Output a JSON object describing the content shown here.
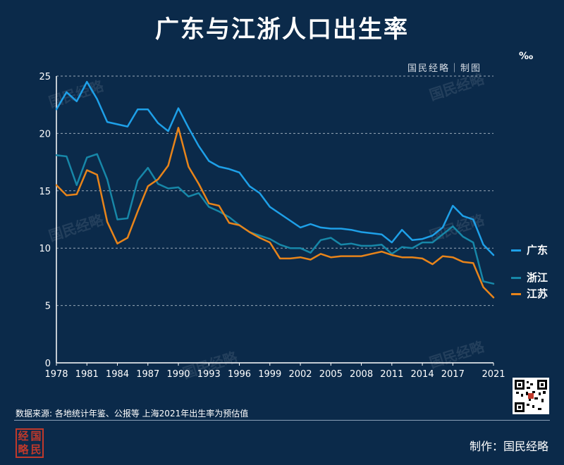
{
  "title": "广东与江浙人口出生率",
  "credit_top": "国民经略｜制图",
  "unit": "‰",
  "watermark": "国民经略",
  "source": "数据来源: 各地统计年鉴、公报等 上海2021年出生率为预估值",
  "footer_credit": "制作：国民经略",
  "logo_chars": [
    "经",
    "国",
    "略",
    "民"
  ],
  "chart_data": {
    "type": "line",
    "title": "广东与江浙人口出生率",
    "ylabel": "‰",
    "xlim": [
      1978,
      2021
    ],
    "ylim": [
      0,
      25
    ],
    "yticks": [
      0,
      5,
      10,
      15,
      20,
      25
    ],
    "xticks": [
      1978,
      1981,
      1984,
      1987,
      1990,
      1993,
      1996,
      1999,
      2002,
      2005,
      2008,
      2011,
      2014,
      2017,
      2021
    ],
    "grid": true,
    "legend_position": "right",
    "x": [
      1978,
      1979,
      1980,
      1981,
      1982,
      1983,
      1984,
      1985,
      1986,
      1987,
      1988,
      1989,
      1990,
      1991,
      1992,
      1993,
      1994,
      1995,
      1996,
      1997,
      1998,
      1999,
      2000,
      2001,
      2002,
      2003,
      2004,
      2005,
      2006,
      2007,
      2008,
      2009,
      2010,
      2011,
      2012,
      2013,
      2014,
      2015,
      2016,
      2017,
      2018,
      2019,
      2020,
      2021
    ],
    "series": [
      {
        "name": "广东",
        "color": "#1ea0e8",
        "values": [
          22.1,
          23.6,
          22.8,
          24.5,
          23.0,
          21.0,
          20.8,
          20.6,
          22.1,
          22.1,
          20.9,
          20.2,
          22.2,
          20.5,
          18.9,
          17.6,
          17.1,
          16.9,
          16.6,
          15.4,
          14.8,
          13.6,
          13.0,
          12.4,
          11.8,
          12.1,
          11.8,
          11.7,
          11.7,
          11.6,
          11.4,
          11.3,
          11.2,
          10.5,
          11.6,
          10.7,
          10.8,
          11.1,
          11.8,
          13.7,
          12.8,
          12.5,
          10.3,
          9.4
        ]
      },
      {
        "name": "浙江",
        "color": "#1787a8",
        "values": [
          18.1,
          18.0,
          15.5,
          17.9,
          18.2,
          16.0,
          12.5,
          12.6,
          15.9,
          17.0,
          15.6,
          15.2,
          15.3,
          14.5,
          14.8,
          13.6,
          13.2,
          12.7,
          12.0,
          11.4,
          11.1,
          10.8,
          10.3,
          10.0,
          10.0,
          9.6,
          10.7,
          10.9,
          10.3,
          10.4,
          10.2,
          10.2,
          10.3,
          9.5,
          10.1,
          10.0,
          10.5,
          10.5,
          11.2,
          11.9,
          11.0,
          10.5,
          7.1,
          6.9
        ]
      },
      {
        "name": "江苏",
        "color": "#e8841a",
        "values": [
          15.5,
          14.6,
          14.7,
          16.8,
          16.4,
          12.3,
          10.4,
          10.9,
          13.2,
          15.4,
          16.0,
          17.2,
          20.5,
          17.1,
          15.6,
          13.9,
          13.7,
          12.2,
          12.0,
          11.4,
          10.9,
          10.5,
          9.1,
          9.1,
          9.2,
          9.0,
          9.5,
          9.2,
          9.3,
          9.3,
          9.3,
          9.5,
          9.7,
          9.4,
          9.2,
          9.2,
          9.1,
          8.6,
          9.3,
          9.2,
          8.8,
          8.7,
          6.6,
          5.7
        ]
      }
    ]
  }
}
